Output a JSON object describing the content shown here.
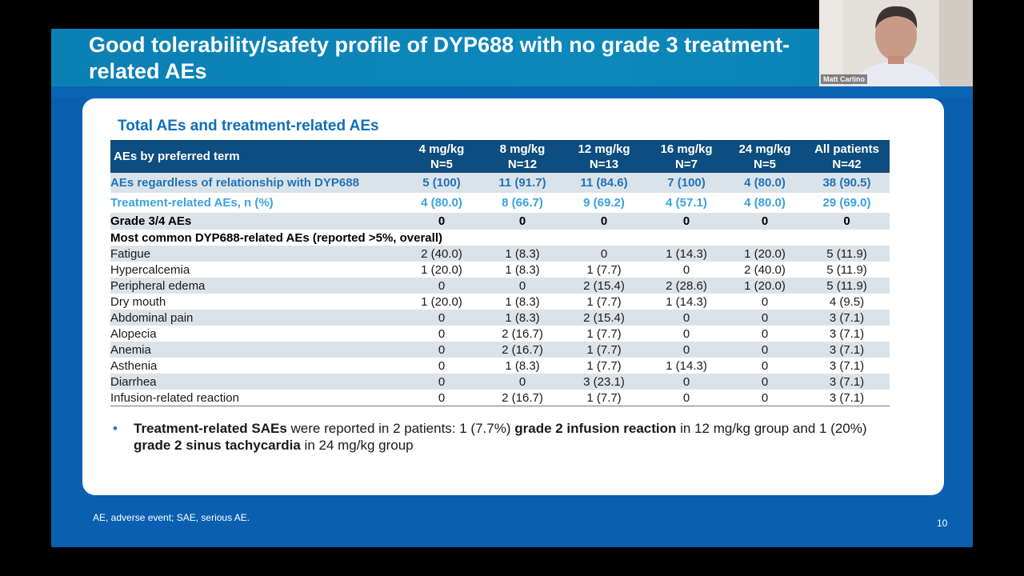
{
  "slide": {
    "title": "Good tolerability/safety profile of DYP688 with no grade 3 treatment-related AEs",
    "page_number": "10",
    "footnote": "AE, adverse event; SAE, serious AE."
  },
  "card": {
    "heading": "Total AEs and treatment-related AEs"
  },
  "table": {
    "header": {
      "term": "AEs by preferred term",
      "columns": [
        {
          "dose": "4 mg/kg",
          "n": "N=5"
        },
        {
          "dose": "8 mg/kg",
          "n": "N=12"
        },
        {
          "dose": "12 mg/kg",
          "n": "N=13"
        },
        {
          "dose": "16 mg/kg",
          "n": "N=7"
        },
        {
          "dose": "24 mg/kg",
          "n": "N=5"
        },
        {
          "dose": "All patients",
          "n": "N=42"
        }
      ]
    },
    "any_ae": {
      "term": "AEs regardless of relationship with DYP688",
      "values": [
        "5 (100)",
        "11 (91.7)",
        "11 (84.6)",
        "7 (100)",
        "4 (80.0)",
        "38 (90.5)"
      ]
    },
    "tr_ae": {
      "term": "Treatment-related AEs, n (%)",
      "values": [
        "4 (80.0)",
        "8 (66.7)",
        "9 (69.2)",
        "4 (57.1)",
        "4 (80.0)",
        "29 (69.0)"
      ]
    },
    "grade34": {
      "term": "Grade 3/4 AEs",
      "values": [
        "0",
        "0",
        "0",
        "0",
        "0",
        "0"
      ]
    },
    "common_label": "Most common DYP688-related AEs (reported >5%, overall)",
    "rows": [
      {
        "term": "Fatigue",
        "values": [
          "2 (40.0)",
          "1 (8.3)",
          "0",
          "1 (14.3)",
          "1 (20.0)",
          "5 (11.9)"
        ]
      },
      {
        "term": "Hypercalcemia",
        "values": [
          "1 (20.0)",
          "1 (8.3)",
          "1 (7.7)",
          "0",
          "2 (40.0)",
          "5 (11.9)"
        ]
      },
      {
        "term": "Peripheral edema",
        "values": [
          "0",
          "0",
          "2 (15.4)",
          "2 (28.6)",
          "1 (20.0)",
          "5 (11.9)"
        ]
      },
      {
        "term": "Dry mouth",
        "values": [
          "1 (20.0)",
          "1 (8.3)",
          "1 (7.7)",
          "1 (14.3)",
          "0",
          "4 (9.5)"
        ]
      },
      {
        "term": "Abdominal pain",
        "values": [
          "0",
          "1 (8.3)",
          "2 (15.4)",
          "0",
          "0",
          "3 (7.1)"
        ]
      },
      {
        "term": "Alopecia",
        "values": [
          "0",
          "2 (16.7)",
          "1 (7.7)",
          "0",
          "0",
          "3 (7.1)"
        ]
      },
      {
        "term": "Anemia",
        "values": [
          "0",
          "2 (16.7)",
          "1 (7.7)",
          "0",
          "0",
          "3 (7.1)"
        ]
      },
      {
        "term": "Asthenia",
        "values": [
          "0",
          "1 (8.3)",
          "1 (7.7)",
          "1 (14.3)",
          "0",
          "3 (7.1)"
        ]
      },
      {
        "term": "Diarrhea",
        "values": [
          "0",
          "0",
          "3 (23.1)",
          "0",
          "0",
          "3 (7.1)"
        ]
      },
      {
        "term": "Infusion-related reaction",
        "values": [
          "0",
          "2 (16.7)",
          "1 (7.7)",
          "0",
          "0",
          "3 (7.1)"
        ]
      }
    ]
  },
  "bullet": {
    "b1": "Treatment-related SAEs",
    "t1": " were reported in 2 patients: 1 (7.7%) ",
    "b2": "grade 2 infusion reaction",
    "t2": " in 12 mg/kg group and 1 (20%) ",
    "b3": "grade 2 sinus tachycardia",
    "t3": " in 24 mg/kg group"
  },
  "webcam": {
    "presenter_name": "Matt Carlino"
  },
  "colors": {
    "slide_bg": "#0a5fb0",
    "title_bar": "#0b80b4",
    "table_header": "#0d4d7f",
    "row_shade": "#dbe3ea",
    "accent_dark": "#1f73b8",
    "accent_light": "#3aa3dd"
  }
}
